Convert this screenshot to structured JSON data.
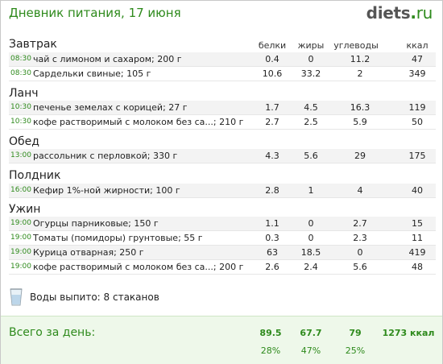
{
  "header": {
    "title": "Дневник питания, 17 июня",
    "logo": {
      "name": "diets",
      "dot": ".",
      "tld": "ru"
    }
  },
  "columns": [
    "белки",
    "жиры",
    "углеводы",
    "ккал"
  ],
  "meals": [
    {
      "name": "Завтрак",
      "items": [
        {
          "time": "08:30",
          "food": "чай с лимоном и сахаром; 200 г",
          "protein": "0.4",
          "fat": "0",
          "carbs": "11.2",
          "kcal": "47"
        },
        {
          "time": "08:30",
          "food": "Сардельки свиные; 105 г",
          "protein": "10.6",
          "fat": "33.2",
          "carbs": "2",
          "kcal": "349"
        }
      ]
    },
    {
      "name": "Ланч",
      "items": [
        {
          "time": "10:30",
          "food": "печенье земелах с корицей; 27 г",
          "protein": "1.7",
          "fat": "4.5",
          "carbs": "16.3",
          "kcal": "119"
        },
        {
          "time": "10:30",
          "food": "кофе растворимый с молоком без са...; 210 г",
          "protein": "2.7",
          "fat": "2.5",
          "carbs": "5.9",
          "kcal": "50"
        }
      ]
    },
    {
      "name": "Обед",
      "items": [
        {
          "time": "13:00",
          "food": "рассольник с перловкой; 330 г",
          "protein": "4.3",
          "fat": "5.6",
          "carbs": "29",
          "kcal": "175"
        }
      ]
    },
    {
      "name": "Полдник",
      "items": [
        {
          "time": "16:00",
          "food": "Кефир 1%-ной жирности; 100 г",
          "protein": "2.8",
          "fat": "1",
          "carbs": "4",
          "kcal": "40"
        }
      ]
    },
    {
      "name": "Ужин",
      "items": [
        {
          "time": "19:00",
          "food": "Огурцы парниковые; 150 г",
          "protein": "1.1",
          "fat": "0",
          "carbs": "2.7",
          "kcal": "15"
        },
        {
          "time": "19:00",
          "food": "Томаты (помидоры) грунтовые; 55 г",
          "protein": "0.3",
          "fat": "0",
          "carbs": "2.3",
          "kcal": "11"
        },
        {
          "time": "19:00",
          "food": "Курица отварная; 250 г",
          "protein": "63",
          "fat": "18.5",
          "carbs": "0",
          "kcal": "419"
        },
        {
          "time": "19:00",
          "food": "кофе растворимый с молоком без са...; 200 г",
          "protein": "2.6",
          "fat": "2.4",
          "carbs": "5.6",
          "kcal": "48"
        }
      ]
    }
  ],
  "water": {
    "text": "Воды выпито: 8 стаканов",
    "icon": "water-glass-icon"
  },
  "totals": {
    "label": "Всего за день:",
    "protein": "89.5",
    "fat": "67.7",
    "carbs": "79",
    "kcal": "1273 ккал",
    "protein_pct": "28%",
    "fat_pct": "47%",
    "carbs_pct": "25%"
  },
  "colors": {
    "accent": "#2e8a1c",
    "footer_bg": "#eef8ea",
    "row_shade": "#f3f3f3"
  }
}
